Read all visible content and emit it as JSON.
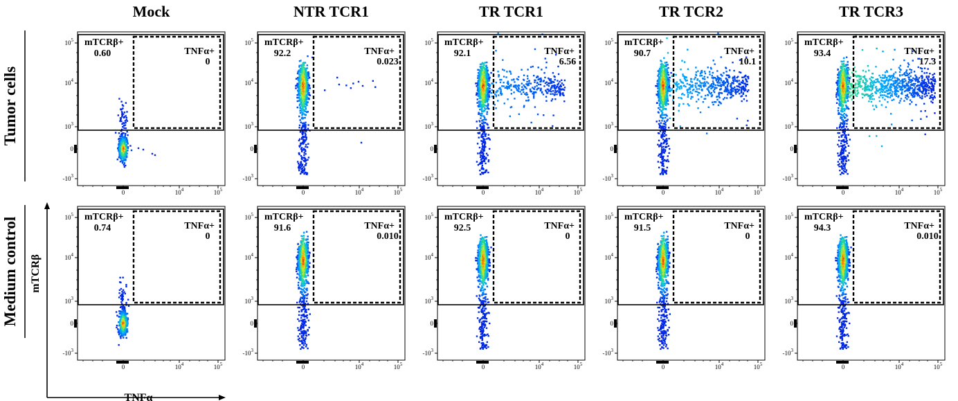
{
  "figure": {
    "columns": [
      "Mock",
      "NTR TCR1",
      "TR TCR1",
      "TR TCR2",
      "TR TCR3"
    ],
    "rows": [
      "Tumor cells",
      "Medium control"
    ],
    "x_axis_label": "TNFα",
    "y_axis_label": "mTCRβ",
    "x_tick_labels": [
      "0",
      "10",
      "10"
    ],
    "x_tick_exponents": [
      "",
      "4",
      "5"
    ],
    "y_tick_labels": [
      "10",
      "10",
      "10",
      "0",
      "-10"
    ],
    "y_tick_exponents": [
      "5",
      "4",
      "3",
      "",
      "3"
    ],
    "gate_labels": {
      "mtcrb": "mTCRβ+",
      "tnfa": "TNFα+"
    }
  },
  "chart_data": {
    "type": "scatter",
    "subtype": "flow-cytometry-density-plot",
    "x_scale": "biexponential",
    "y_scale": "biexponential",
    "x_ticks": [
      0,
      10000,
      100000
    ],
    "y_ticks": [
      -1000,
      0,
      1000,
      10000,
      100000
    ],
    "gates": [
      "mTCRβ+",
      "TNFα+"
    ],
    "panels": [
      {
        "row": "Tumor cells",
        "column": "Mock",
        "mtcrb_pos": "0.60",
        "tnfa_pos": "0"
      },
      {
        "row": "Tumor cells",
        "column": "NTR TCR1",
        "mtcrb_pos": "92.2",
        "tnfa_pos": "0.023"
      },
      {
        "row": "Tumor cells",
        "column": "TR TCR1",
        "mtcrb_pos": "92.1",
        "tnfa_pos": "6.56"
      },
      {
        "row": "Tumor cells",
        "column": "TR TCR2",
        "mtcrb_pos": "90.7",
        "tnfa_pos": "10.1"
      },
      {
        "row": "Tumor cells",
        "column": "TR TCR3",
        "mtcrb_pos": "93.4",
        "tnfa_pos": "17.3"
      },
      {
        "row": "Medium control",
        "column": "Mock",
        "mtcrb_pos": "0.74",
        "tnfa_pos": "0"
      },
      {
        "row": "Medium control",
        "column": "NTR TCR1",
        "mtcrb_pos": "91.6",
        "tnfa_pos": "0.010"
      },
      {
        "row": "Medium control",
        "column": "TR TCR1",
        "mtcrb_pos": "92.5",
        "tnfa_pos": "0"
      },
      {
        "row": "Medium control",
        "column": "TR TCR2",
        "mtcrb_pos": "91.5",
        "tnfa_pos": "0"
      },
      {
        "row": "Medium control",
        "column": "TR TCR3",
        "mtcrb_pos": "94.3",
        "tnfa_pos": "0.010"
      }
    ]
  }
}
